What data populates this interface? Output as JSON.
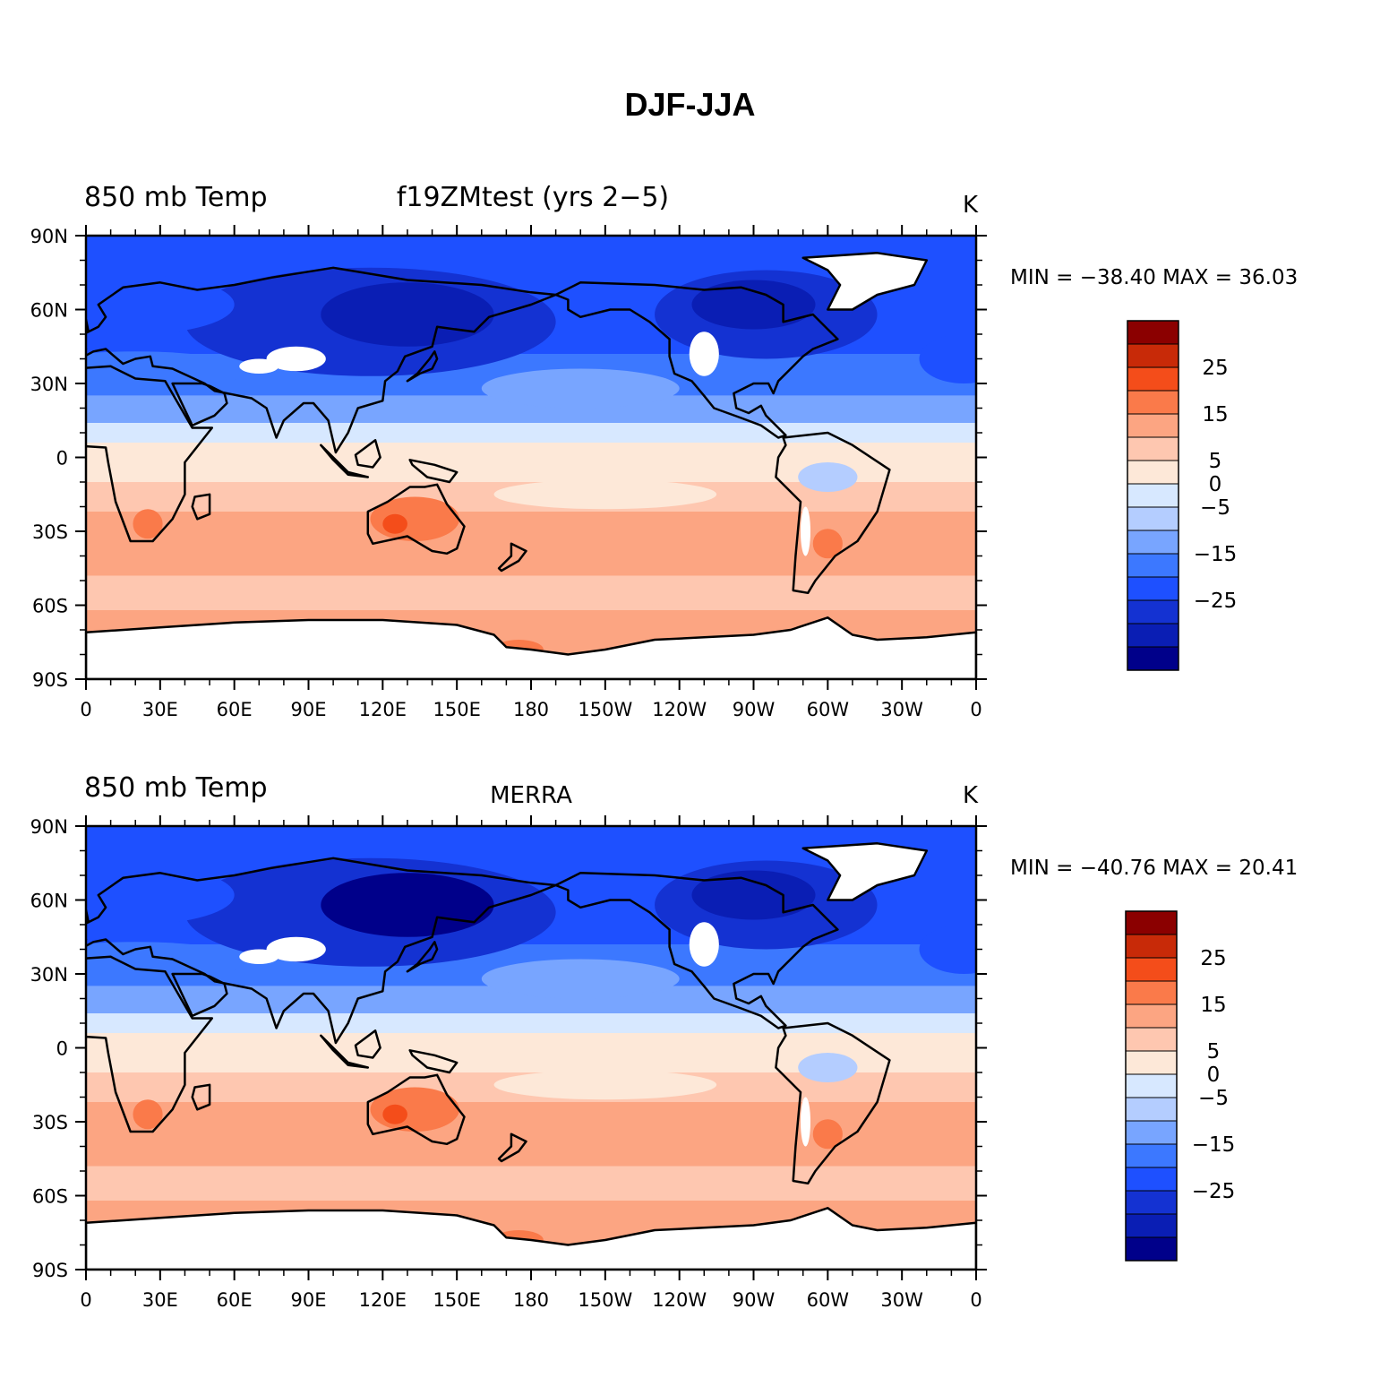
{
  "title": "DJF-JJA",
  "colors": {
    "levels": [
      "#00008a",
      "#0a1eb4",
      "#1432d2",
      "#1e50ff",
      "#3c78ff",
      "#78a5ff",
      "#b4cdff",
      "#d7e8ff",
      "#fde8d8",
      "#fec7b0",
      "#fca582",
      "#fa7a4a",
      "#f44d1a",
      "#c82a08",
      "#8b0000"
    ],
    "land_outline": "#000000",
    "missing": "#ffffff"
  },
  "panels": [
    {
      "left_title": "850 mb Temp",
      "center_title": "f19ZMtest (yrs 2−5)",
      "units": "K",
      "min_max": "MIN = −38.40  MAX =   36.03"
    },
    {
      "left_title": "850 mb Temp",
      "center_title": "MERRA",
      "units": "K",
      "min_max": "MIN = −40.76  MAX =   20.41"
    }
  ],
  "axes": {
    "lat_ticks": [
      "90N",
      "60N",
      "30N",
      "0",
      "30S",
      "60S",
      "90S"
    ],
    "lon_ticks": [
      "0",
      "30E",
      "60E",
      "90E",
      "120E",
      "150E",
      "180",
      "150W",
      "120W",
      "90W",
      "60W",
      "30W",
      "0"
    ]
  },
  "colorbar": {
    "labels": [
      "25",
      "15",
      "5",
      "0",
      "−5",
      "−15",
      "−25"
    ]
  }
}
